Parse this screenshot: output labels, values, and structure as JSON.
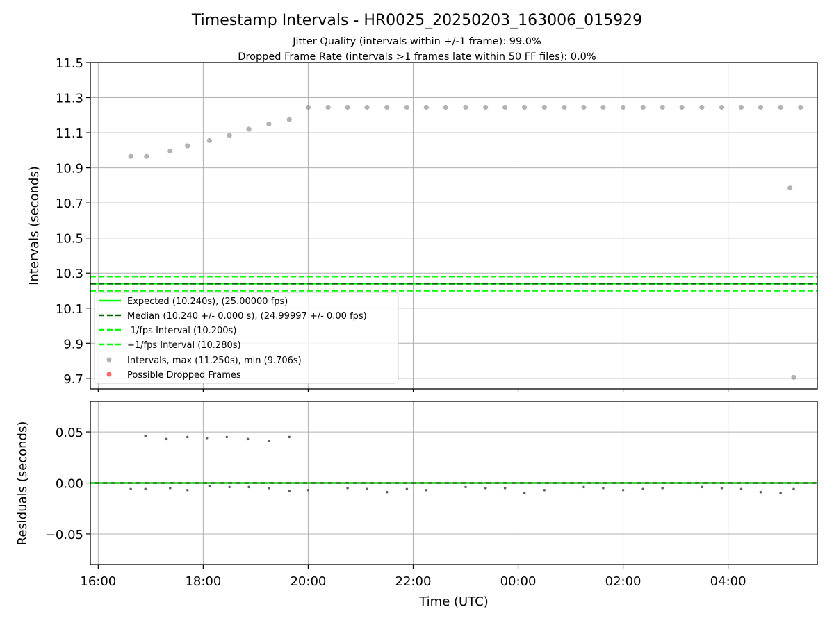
{
  "title": "Timestamp Intervals - HR0025_20250203_163006_015929",
  "subtitles": [
    "Jitter Quality (intervals within +/-1 frame): 99.0%",
    "Dropped Frame Rate (intervals >1 frames late within 50 FF files): 0.0%"
  ],
  "colors": {
    "expected": "#00ff00",
    "median": "#006400",
    "interval_lines": "#00ff00",
    "points": "#808080",
    "dropped": "#ff0000",
    "grid": "#b0b0b0",
    "axes": "#000000"
  },
  "chart_data": [
    {
      "type": "scatter",
      "ylabel": "Intervals (seconds)",
      "ylim": [
        9.64,
        11.5
      ],
      "yticks": [
        "9.7",
        "9.9",
        "10.1",
        "10.3",
        "10.5",
        "10.7",
        "10.9",
        "11.1",
        "11.3",
        "11.5"
      ],
      "grid": true,
      "legend_placement": "lower-left",
      "legend": [
        "Expected (10.240s), (25.00000 fps)",
        "Median (10.240 +/- 0.000 s), (24.99997 +/- 0.00 fps)",
        "-1/fps Interval (10.200s)",
        "+1/fps Interval (10.280s)",
        "Intervals, max (11.250s), min (9.706s)",
        "Possible Dropped Frames"
      ],
      "reference_lines": {
        "expected": 10.24,
        "median": 10.24,
        "minus_one_fps": 10.2,
        "plus_one_fps": 10.28
      },
      "series": [
        {
          "name": "Intervals, max (11.250s), min (9.706s)",
          "x_hours": [
            16.62,
            16.92,
            17.37,
            17.7,
            18.12,
            18.5,
            18.87,
            19.25,
            19.64,
            20.0,
            20.38,
            20.75,
            21.12,
            21.5,
            21.88,
            22.25,
            22.62,
            23.0,
            23.38,
            23.75,
            24.12,
            24.5,
            24.88,
            25.25,
            25.62,
            26.0,
            26.38,
            26.75,
            27.12,
            27.5,
            27.88,
            28.25,
            28.62,
            29.0,
            29.18,
            29.25,
            29.38
          ],
          "y": [
            10.965,
            10.965,
            10.995,
            11.025,
            11.055,
            11.085,
            11.12,
            11.15,
            11.175,
            11.245,
            11.245,
            11.245,
            11.245,
            11.245,
            11.245,
            11.245,
            11.245,
            11.245,
            11.245,
            11.245,
            11.245,
            11.245,
            11.245,
            11.245,
            11.245,
            11.245,
            11.245,
            11.245,
            11.245,
            11.245,
            11.245,
            11.245,
            11.245,
            11.245,
            10.785,
            9.706,
            11.245
          ]
        }
      ]
    },
    {
      "type": "scatter",
      "xlabel": "Time (UTC)",
      "ylabel": "Residuals (seconds)",
      "ylim": [
        -0.08,
        0.08
      ],
      "yticks": [
        "−0.05",
        "0.00",
        "0.05"
      ],
      "xlim_hours": [
        15.85,
        29.7
      ],
      "xticks": [
        "16:00",
        "18:00",
        "20:00",
        "22:00",
        "00:00",
        "02:00",
        "04:00"
      ],
      "grid": true,
      "series": [
        {
          "name": "Residuals",
          "x_hours": [
            16.9,
            17.3,
            17.7,
            18.07,
            18.45,
            18.85,
            19.25,
            19.64,
            16.62,
            16.9,
            17.37,
            17.7,
            18.12,
            18.5,
            18.87,
            19.25,
            19.64,
            20.0,
            20.75,
            21.12,
            21.5,
            21.88,
            22.25,
            23.0,
            23.38,
            23.75,
            24.12,
            24.5,
            25.25,
            25.62,
            26.0,
            26.38,
            26.75,
            27.5,
            27.88,
            28.25,
            28.62,
            29.0,
            29.25
          ],
          "y": [
            0.046,
            0.043,
            0.045,
            0.044,
            0.045,
            0.043,
            0.041,
            0.045,
            -0.006,
            -0.006,
            -0.005,
            -0.007,
            -0.003,
            -0.004,
            -0.004,
            -0.005,
            -0.008,
            -0.007,
            -0.005,
            -0.006,
            -0.009,
            -0.006,
            -0.007,
            -0.004,
            -0.005,
            -0.005,
            -0.01,
            -0.007,
            -0.004,
            -0.005,
            -0.007,
            -0.006,
            -0.005,
            -0.004,
            -0.005,
            -0.006,
            -0.009,
            -0.01,
            -0.006
          ]
        }
      ],
      "reference_lines": {
        "expected": 0.0,
        "median": 0.0
      }
    }
  ]
}
